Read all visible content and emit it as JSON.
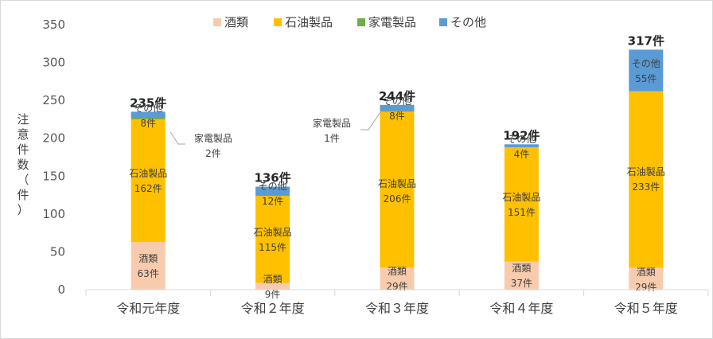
{
  "chart_data": {
    "type": "bar",
    "stacked": true,
    "categories": [
      "令和元年度",
      "令和２年度",
      "令和３年度",
      "令和４年度",
      "令和５年度"
    ],
    "series": [
      {
        "name": "酒類",
        "values": [
          63,
          9,
          29,
          37,
          29
        ],
        "color": "#f8cbad"
      },
      {
        "name": "石油製品",
        "values": [
          162,
          115,
          206,
          151,
          233
        ],
        "color": "#ffc000"
      },
      {
        "name": "家電製品",
        "values": [
          2,
          0,
          1,
          0,
          0
        ],
        "color": "#70ad47"
      },
      {
        "name": "その他",
        "values": [
          8,
          12,
          8,
          4,
          55
        ],
        "color": "#5b9bd5"
      }
    ],
    "totals": [
      "235件",
      "136件",
      "244件",
      "192件",
      "317件"
    ],
    "segment_labels": [
      [
        {
          "name": "酒類",
          "value": "63件"
        },
        {
          "name": "石油製品",
          "value": "162件"
        },
        {
          "name": "家電製品",
          "value": "2件"
        },
        {
          "name": "その他",
          "value": "8件"
        }
      ],
      [
        {
          "name": "酒類",
          "value": "9件"
        },
        {
          "name": "石油製品",
          "value": "115件"
        },
        {
          "name": "",
          "value": ""
        },
        {
          "name": "その他",
          "value": "12件"
        }
      ],
      [
        {
          "name": "酒類",
          "value": "29件"
        },
        {
          "name": "石油製品",
          "value": "206件"
        },
        {
          "name": "家電製品",
          "value": "1件"
        },
        {
          "name": "その他",
          "value": "8件"
        }
      ],
      [
        {
          "name": "酒類",
          "value": "37件"
        },
        {
          "name": "石油製品",
          "value": "151件"
        },
        {
          "name": "",
          "value": ""
        },
        {
          "name": "その他",
          "value": "4件"
        }
      ],
      [
        {
          "name": "酒類",
          "value": "29件"
        },
        {
          "name": "石油製品",
          "value": "233件"
        },
        {
          "name": "",
          "value": ""
        },
        {
          "name": "その他",
          "value": "55件"
        }
      ]
    ],
    "ylabel": "注意件数（件）",
    "ylim": [
      0,
      350
    ],
    "yticks": [
      0,
      50,
      100,
      150,
      200,
      250,
      300,
      350
    ],
    "legend_position": "top-center",
    "grid": false
  }
}
